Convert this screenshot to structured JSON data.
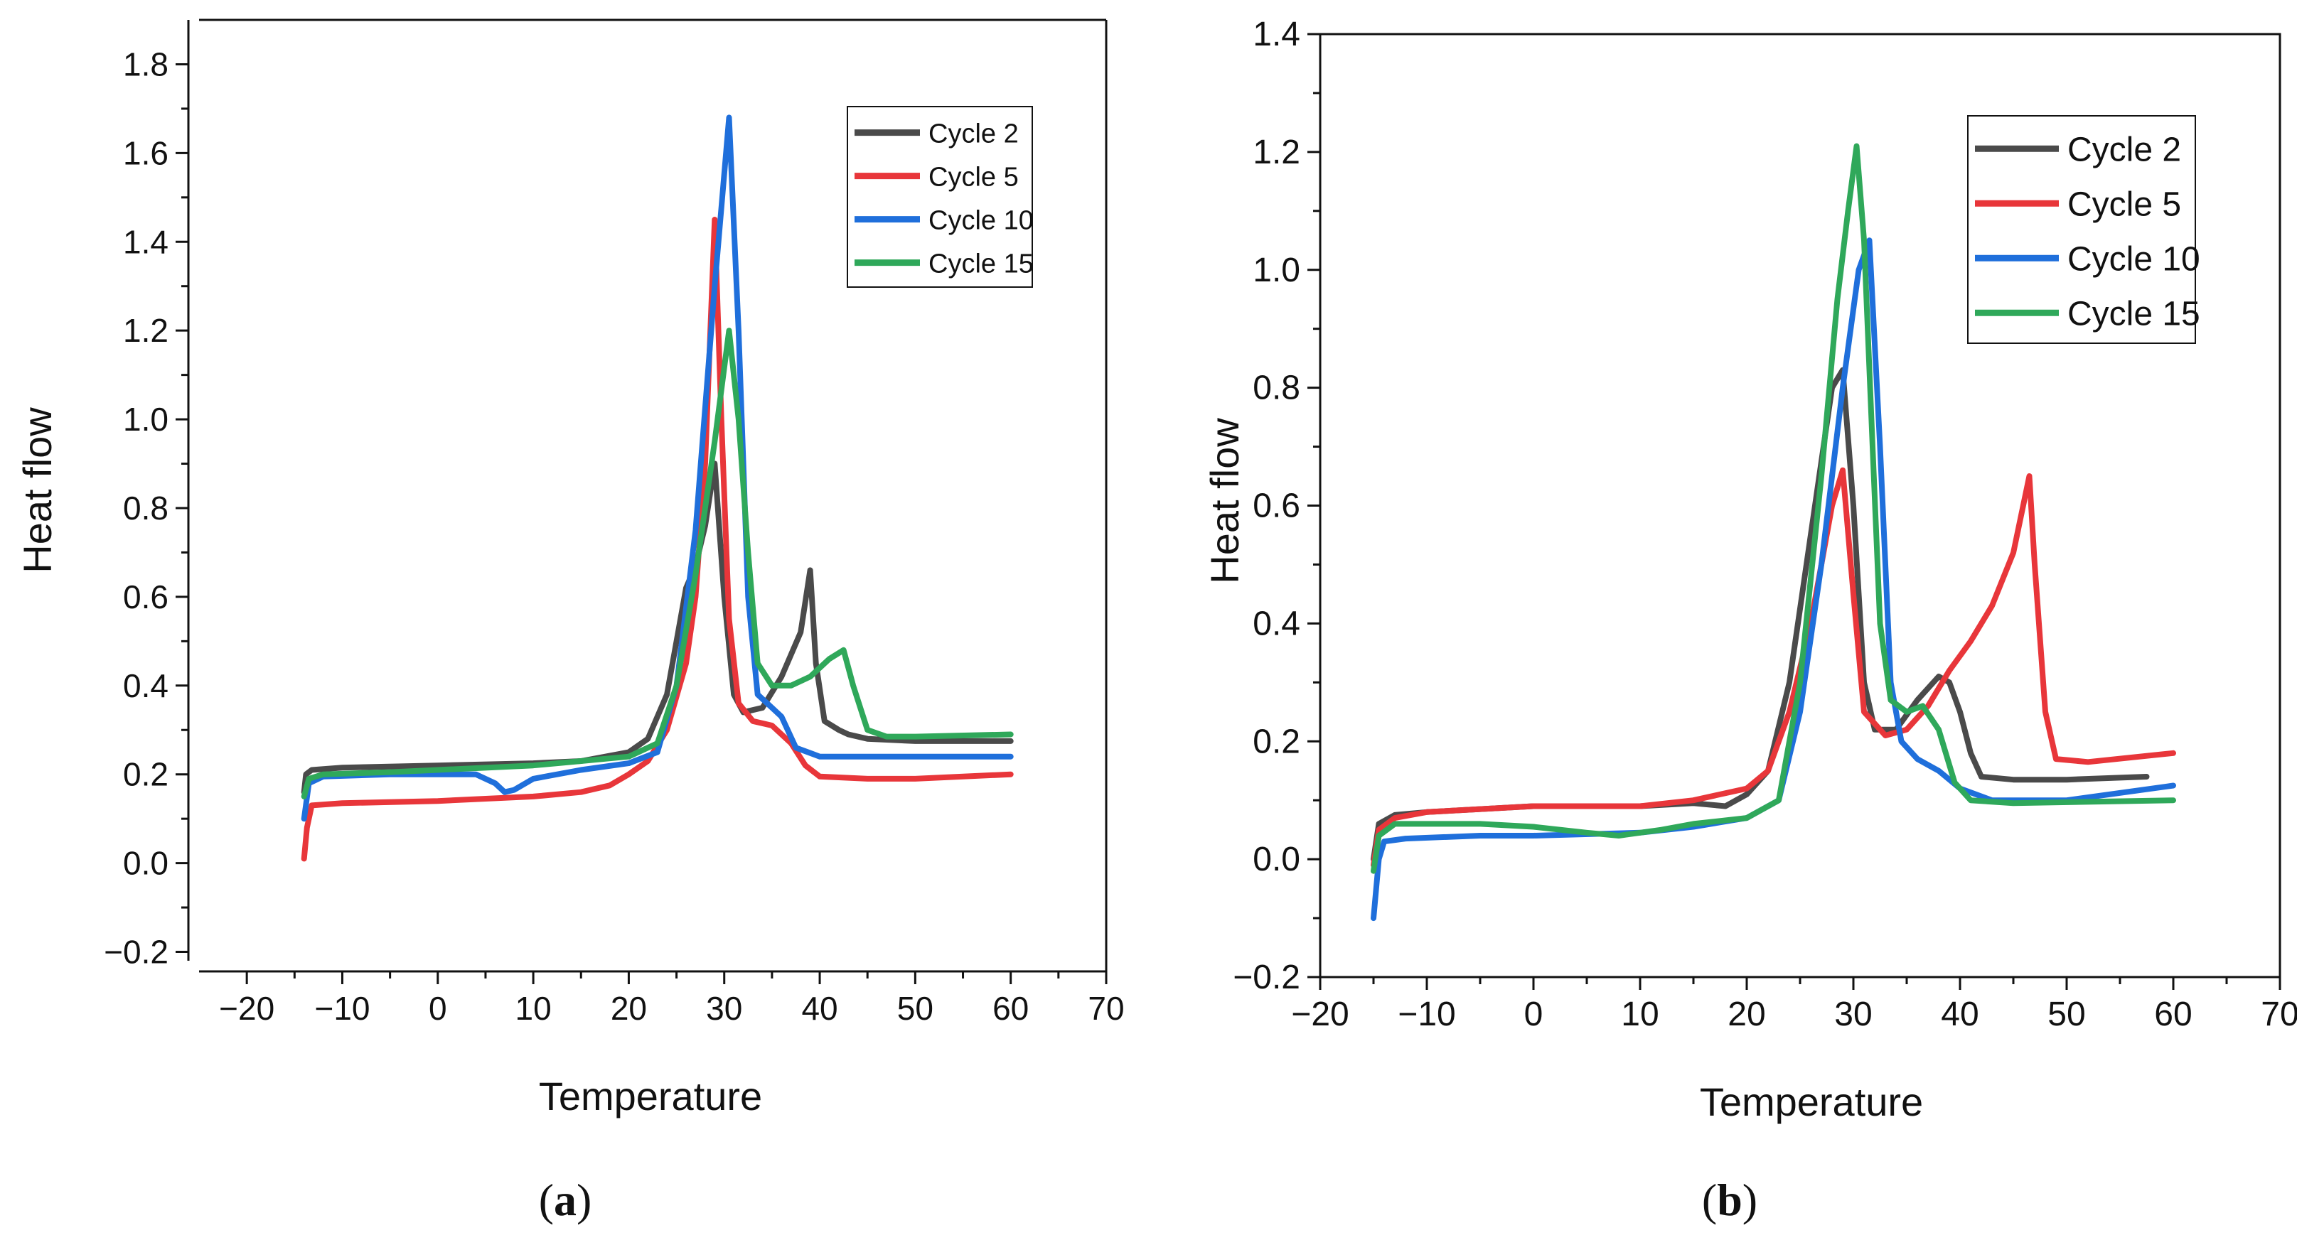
{
  "figure": {
    "panels": [
      "a",
      "b"
    ]
  },
  "colors": {
    "cycle_2": "#4a4a4a",
    "cycle_5": "#e8363a",
    "cycle_10": "#1f6fdb",
    "cycle_15": "#2fa85a",
    "axis": "#111111"
  },
  "chart_data": [
    {
      "id": "a",
      "type": "line",
      "panel_label": "a",
      "xlabel": "Temperature",
      "ylabel": "Heat flow",
      "xlim": [
        -25,
        70
      ],
      "ylim": [
        -0.22,
        1.9
      ],
      "xticks": [
        -20,
        -10,
        0,
        10,
        20,
        30,
        40,
        50,
        60,
        70
      ],
      "xtick_labels": [
        "−20",
        "−10",
        "0",
        "10",
        "20",
        "30",
        "40",
        "50",
        "60",
        "70"
      ],
      "yticks": [
        -0.2,
        0.0,
        0.2,
        0.4,
        0.6,
        0.8,
        1.0,
        1.2,
        1.4,
        1.6,
        1.8
      ],
      "ytick_labels": [
        "−0.2",
        "0.0",
        "0.2",
        "0.4",
        "0.6",
        "0.8",
        "1.0",
        "1.2",
        "1.4",
        "1.6",
        "1.8"
      ],
      "legend_position": "top-right",
      "series": [
        {
          "name": "Cycle 2",
          "color_key": "cycle_2",
          "points": [
            [
              -14,
              0.16
            ],
            [
              -13.8,
              0.2
            ],
            [
              -13.2,
              0.21
            ],
            [
              -10,
              0.215
            ],
            [
              0,
              0.22
            ],
            [
              10,
              0.225
            ],
            [
              15,
              0.23
            ],
            [
              20,
              0.25
            ],
            [
              22,
              0.28
            ],
            [
              24,
              0.38
            ],
            [
              25,
              0.5
            ],
            [
              26,
              0.62
            ],
            [
              27,
              0.67
            ],
            [
              28,
              0.76
            ],
            [
              29,
              0.9
            ],
            [
              30,
              0.6
            ],
            [
              31,
              0.38
            ],
            [
              32,
              0.34
            ],
            [
              34,
              0.35
            ],
            [
              36,
              0.42
            ],
            [
              38,
              0.52
            ],
            [
              39,
              0.66
            ],
            [
              39.6,
              0.45
            ],
            [
              40.5,
              0.32
            ],
            [
              42,
              0.3
            ],
            [
              43,
              0.29
            ],
            [
              45,
              0.28
            ],
            [
              50,
              0.275
            ],
            [
              60,
              0.275
            ]
          ]
        },
        {
          "name": "Cycle 5",
          "color_key": "cycle_5",
          "points": [
            [
              -14,
              0.01
            ],
            [
              -13.7,
              0.08
            ],
            [
              -13.2,
              0.13
            ],
            [
              -10,
              0.135
            ],
            [
              0,
              0.14
            ],
            [
              10,
              0.15
            ],
            [
              15,
              0.16
            ],
            [
              18,
              0.175
            ],
            [
              20,
              0.2
            ],
            [
              22,
              0.23
            ],
            [
              24,
              0.3
            ],
            [
              26,
              0.45
            ],
            [
              27,
              0.6
            ],
            [
              28,
              0.9
            ],
            [
              29,
              1.45
            ],
            [
              29.7,
              1.0
            ],
            [
              30.5,
              0.55
            ],
            [
              31.5,
              0.36
            ],
            [
              33,
              0.32
            ],
            [
              35,
              0.31
            ],
            [
              37,
              0.27
            ],
            [
              38.5,
              0.22
            ],
            [
              40,
              0.195
            ],
            [
              45,
              0.19
            ],
            [
              50,
              0.19
            ],
            [
              60,
              0.2
            ]
          ]
        },
        {
          "name": "Cycle 10",
          "color_key": "cycle_10",
          "points": [
            [
              -14,
              0.1
            ],
            [
              -13.5,
              0.18
            ],
            [
              -12,
              0.195
            ],
            [
              -5,
              0.2
            ],
            [
              0,
              0.2
            ],
            [
              4,
              0.2
            ],
            [
              6,
              0.18
            ],
            [
              7,
              0.16
            ],
            [
              8,
              0.165
            ],
            [
              10,
              0.19
            ],
            [
              15,
              0.21
            ],
            [
              20,
              0.225
            ],
            [
              23,
              0.25
            ],
            [
              25,
              0.4
            ],
            [
              27,
              0.75
            ],
            [
              29,
              1.3
            ],
            [
              30.5,
              1.68
            ],
            [
              31.5,
              1.2
            ],
            [
              32.5,
              0.6
            ],
            [
              33.5,
              0.38
            ],
            [
              35,
              0.35
            ],
            [
              36,
              0.33
            ],
            [
              37.5,
              0.26
            ],
            [
              40,
              0.24
            ],
            [
              45,
              0.24
            ],
            [
              50,
              0.24
            ],
            [
              60,
              0.24
            ]
          ]
        },
        {
          "name": "Cycle 15",
          "color_key": "cycle_15",
          "points": [
            [
              -14,
              0.15
            ],
            [
              -13.5,
              0.19
            ],
            [
              -12,
              0.2
            ],
            [
              -5,
              0.205
            ],
            [
              0,
              0.21
            ],
            [
              10,
              0.22
            ],
            [
              15,
              0.23
            ],
            [
              20,
              0.24
            ],
            [
              23,
              0.27
            ],
            [
              25,
              0.4
            ],
            [
              27,
              0.65
            ],
            [
              29,
              0.95
            ],
            [
              30.5,
              1.2
            ],
            [
              31.5,
              1.0
            ],
            [
              32.5,
              0.7
            ],
            [
              33.5,
              0.45
            ],
            [
              35,
              0.4
            ],
            [
              37,
              0.4
            ],
            [
              39,
              0.42
            ],
            [
              41,
              0.46
            ],
            [
              42.5,
              0.48
            ],
            [
              43.5,
              0.4
            ],
            [
              45,
              0.3
            ],
            [
              47,
              0.285
            ],
            [
              50,
              0.285
            ],
            [
              60,
              0.29
            ]
          ]
        }
      ]
    },
    {
      "id": "b",
      "type": "line",
      "panel_label": "b",
      "xlabel": "Temperature",
      "ylabel": "Heat flow",
      "xlim": [
        -20,
        70
      ],
      "ylim": [
        -0.2,
        1.4
      ],
      "xticks": [
        -20,
        -10,
        0,
        10,
        20,
        30,
        40,
        50,
        60,
        70
      ],
      "xtick_labels": [
        "−20",
        "−10",
        "0",
        "10",
        "20",
        "30",
        "40",
        "50",
        "60",
        "70"
      ],
      "yticks": [
        -0.2,
        0.0,
        0.2,
        0.4,
        0.6,
        0.8,
        1.0,
        1.2,
        1.4
      ],
      "ytick_labels": [
        "−0.2",
        "0.0",
        "0.2",
        "0.4",
        "0.6",
        "0.8",
        "1.0",
        "1.2",
        "1.4"
      ],
      "legend_position": "top-right",
      "series": [
        {
          "name": "Cycle 2",
          "color_key": "cycle_2",
          "points": [
            [
              -15,
              0.0
            ],
            [
              -14.5,
              0.06
            ],
            [
              -13,
              0.075
            ],
            [
              -10,
              0.08
            ],
            [
              0,
              0.09
            ],
            [
              10,
              0.09
            ],
            [
              15,
              0.095
            ],
            [
              18,
              0.09
            ],
            [
              20,
              0.11
            ],
            [
              22,
              0.15
            ],
            [
              24,
              0.3
            ],
            [
              26,
              0.55
            ],
            [
              28,
              0.8
            ],
            [
              29,
              0.83
            ],
            [
              30,
              0.6
            ],
            [
              31,
              0.3
            ],
            [
              32,
              0.22
            ],
            [
              34,
              0.22
            ],
            [
              36,
              0.27
            ],
            [
              38,
              0.31
            ],
            [
              39,
              0.3
            ],
            [
              40,
              0.25
            ],
            [
              41,
              0.18
            ],
            [
              42,
              0.14
            ],
            [
              45,
              0.135
            ],
            [
              50,
              0.135
            ],
            [
              57.5,
              0.14
            ]
          ]
        },
        {
          "name": "Cycle 5",
          "color_key": "cycle_5",
          "points": [
            [
              -15,
              -0.01
            ],
            [
              -14.5,
              0.05
            ],
            [
              -13,
              0.07
            ],
            [
              -10,
              0.08
            ],
            [
              0,
              0.09
            ],
            [
              10,
              0.09
            ],
            [
              15,
              0.1
            ],
            [
              20,
              0.12
            ],
            [
              22,
              0.15
            ],
            [
              24,
              0.25
            ],
            [
              26,
              0.4
            ],
            [
              28,
              0.6
            ],
            [
              29,
              0.66
            ],
            [
              30,
              0.45
            ],
            [
              31,
              0.25
            ],
            [
              33,
              0.21
            ],
            [
              35,
              0.22
            ],
            [
              37,
              0.26
            ],
            [
              39,
              0.32
            ],
            [
              41,
              0.37
            ],
            [
              43,
              0.43
            ],
            [
              45,
              0.52
            ],
            [
              46.5,
              0.65
            ],
            [
              47,
              0.5
            ],
            [
              48,
              0.25
            ],
            [
              49,
              0.17
            ],
            [
              52,
              0.165
            ],
            [
              60,
              0.18
            ]
          ]
        },
        {
          "name": "Cycle 10",
          "color_key": "cycle_10",
          "points": [
            [
              -15,
              -0.1
            ],
            [
              -14.5,
              0.0
            ],
            [
              -14,
              0.03
            ],
            [
              -12,
              0.035
            ],
            [
              -5,
              0.04
            ],
            [
              0,
              0.04
            ],
            [
              10,
              0.045
            ],
            [
              15,
              0.055
            ],
            [
              20,
              0.07
            ],
            [
              23,
              0.1
            ],
            [
              25,
              0.25
            ],
            [
              27,
              0.5
            ],
            [
              29,
              0.8
            ],
            [
              30.5,
              1.0
            ],
            [
              31.5,
              1.05
            ],
            [
              32.5,
              0.7
            ],
            [
              33.5,
              0.3
            ],
            [
              34.5,
              0.2
            ],
            [
              36,
              0.17
            ],
            [
              38,
              0.15
            ],
            [
              40,
              0.12
            ],
            [
              43,
              0.1
            ],
            [
              50,
              0.1
            ],
            [
              60,
              0.125
            ]
          ]
        },
        {
          "name": "Cycle 15",
          "color_key": "cycle_15",
          "points": [
            [
              -15,
              -0.02
            ],
            [
              -14.5,
              0.04
            ],
            [
              -13,
              0.06
            ],
            [
              -5,
              0.06
            ],
            [
              0,
              0.055
            ],
            [
              5,
              0.045
            ],
            [
              8,
              0.04
            ],
            [
              12,
              0.05
            ],
            [
              15,
              0.06
            ],
            [
              20,
              0.07
            ],
            [
              23,
              0.1
            ],
            [
              25,
              0.3
            ],
            [
              27,
              0.65
            ],
            [
              28.5,
              0.95
            ],
            [
              29.5,
              1.1
            ],
            [
              30.3,
              1.21
            ],
            [
              31,
              1.05
            ],
            [
              31.8,
              0.7
            ],
            [
              32.5,
              0.4
            ],
            [
              33.5,
              0.27
            ],
            [
              35,
              0.25
            ],
            [
              36.5,
              0.26
            ],
            [
              38,
              0.22
            ],
            [
              39.5,
              0.13
            ],
            [
              41,
              0.1
            ],
            [
              45,
              0.095
            ],
            [
              60,
              0.1
            ]
          ]
        }
      ]
    }
  ]
}
